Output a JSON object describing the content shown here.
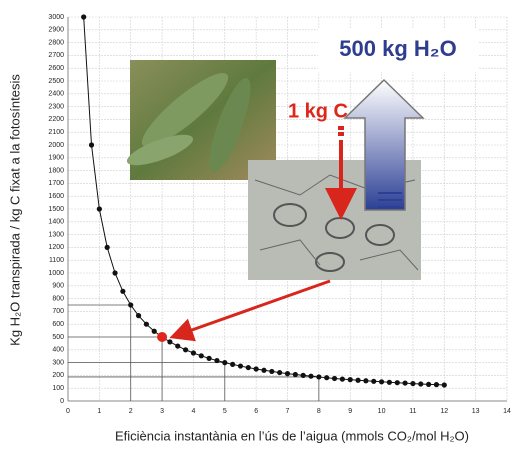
{
  "chart_data": {
    "type": "scatter",
    "y_label": "Kg H₂O transpirada / kg C fixat a la fotosíntesis",
    "x_label": "Eficiència instantània en l’ús de l’aigua (mmols CO₂/mol H₂O)",
    "annotations": [
      "500 kg H₂O",
      "1 kg C"
    ],
    "x": [
      0.5,
      0.75,
      1,
      1.25,
      1.5,
      1.75,
      2,
      2.25,
      2.5,
      2.75,
      3,
      3.25,
      3.5,
      3.75,
      4,
      4.25,
      4.5,
      4.75,
      5,
      5.25,
      5.5,
      5.75,
      6,
      6.25,
      6.5,
      6.75,
      7,
      7.25,
      7.5,
      7.75,
      8,
      8.25,
      8.5,
      8.75,
      9,
      9.25,
      9.5,
      9.75,
      10,
      10.25,
      10.5,
      10.75,
      11,
      11.25,
      11.5,
      11.75,
      12
    ],
    "values": [
      3000,
      2000,
      1500,
      1200,
      1000,
      857,
      750,
      667,
      600,
      545,
      500,
      462,
      429,
      400,
      375,
      353,
      333,
      316,
      300,
      286,
      273,
      261,
      250,
      240,
      231,
      222,
      214,
      207,
      200,
      194,
      188,
      182,
      176,
      171,
      167,
      162,
      158,
      154,
      150,
      146,
      143,
      140,
      136,
      133,
      130,
      128,
      125
    ],
    "color": "#111111",
    "highlight": {
      "x": 3,
      "y": 500,
      "color": "#e0251b"
    },
    "guides": [
      {
        "x": 2,
        "y": 750
      },
      {
        "x": 3,
        "y": 500
      },
      {
        "x": 5,
        "y": 300
      },
      {
        "x": 8,
        "y": 188
      }
    ],
    "xlim": [
      0,
      14
    ],
    "ylim": [
      0,
      3000
    ],
    "xticks": [
      0,
      1,
      2,
      3,
      4,
      5,
      6,
      7,
      8,
      9,
      10,
      11,
      12,
      13,
      14
    ],
    "yticks": [
      0,
      100,
      200,
      300,
      400,
      500,
      600,
      700,
      800,
      900,
      1000,
      1100,
      1200,
      1300,
      1400,
      1500,
      1600,
      1700,
      1800,
      1900,
      2000,
      2100,
      2200,
      2300,
      2400,
      2500,
      2600,
      2700,
      2800,
      2900,
      3000
    ],
    "grid": true
  }
}
